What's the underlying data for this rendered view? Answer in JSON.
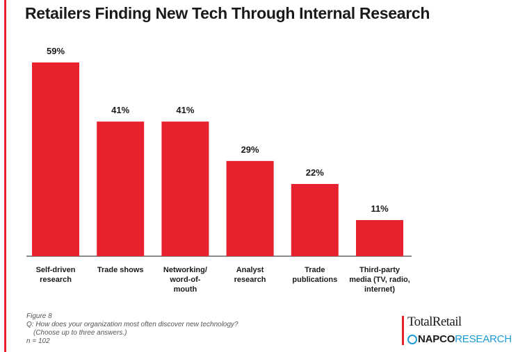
{
  "title": "Retailers Finding New Tech Through Internal Research",
  "chart_data": {
    "type": "bar",
    "title": "Retailers Finding New Tech Through Internal Research",
    "categories": [
      [
        "Self-driven",
        "research"
      ],
      [
        "Trade shows"
      ],
      [
        "Networking/",
        "word-of-",
        "mouth"
      ],
      [
        "Analyst",
        "research"
      ],
      [
        "Trade",
        "publications"
      ],
      [
        "Third-party",
        "media (TV, radio,",
        "internet)"
      ]
    ],
    "values": [
      59,
      41,
      41,
      29,
      22,
      11
    ],
    "value_labels": [
      "59%",
      "41%",
      "41%",
      "29%",
      "22%",
      "11%"
    ],
    "ylim": [
      0,
      59
    ],
    "bar_color": "#e8212e",
    "grid": false,
    "legend": false
  },
  "footnote": {
    "figure": "Figure 8",
    "question": "Q: How does your organization most often discover new technology?",
    "question_note": "(Choose up to three answers.)",
    "sample": "n = 102"
  },
  "logo": {
    "top": "TotalRetail",
    "napco": "NAPCO",
    "research": "RESEARCH",
    "accent_color": "#1b9bd7"
  }
}
